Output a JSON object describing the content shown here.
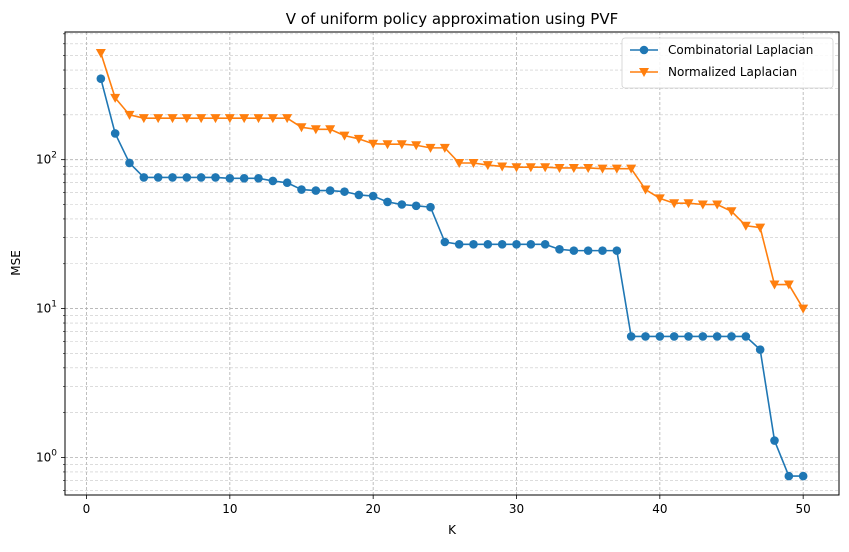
{
  "chart_data": {
    "type": "line",
    "title": "V of uniform policy approximation using PVF",
    "xlabel": "K",
    "ylabel": "MSE",
    "xlim": [
      -1.5,
      52.5
    ],
    "ylim": [
      0.56,
      720
    ],
    "y_scale": "log",
    "grid": true,
    "legend_position": "top-right",
    "x_ticks": [
      {
        "value": 0,
        "label": "0"
      },
      {
        "value": 10,
        "label": "10"
      },
      {
        "value": 20,
        "label": "20"
      },
      {
        "value": 30,
        "label": "30"
      },
      {
        "value": 40,
        "label": "40"
      },
      {
        "value": 50,
        "label": "50"
      }
    ],
    "y_major_ticks": [
      {
        "value": 1,
        "base": "10",
        "exp": "0"
      },
      {
        "value": 10,
        "base": "10",
        "exp": "1"
      },
      {
        "value": 100,
        "base": "10",
        "exp": "2"
      }
    ],
    "x": [
      1,
      2,
      3,
      4,
      5,
      6,
      7,
      8,
      9,
      10,
      11,
      12,
      13,
      14,
      15,
      16,
      17,
      18,
      19,
      20,
      21,
      22,
      23,
      24,
      25,
      26,
      27,
      28,
      29,
      30,
      31,
      32,
      33,
      34,
      35,
      36,
      37,
      38,
      39,
      40,
      41,
      42,
      43,
      44,
      45,
      46,
      47,
      48,
      49,
      50
    ],
    "series": [
      {
        "name": "Combinatorial Laplacian",
        "color": "#1f77b4",
        "marker": "circle",
        "values": [
          350,
          150,
          95,
          76,
          76,
          76,
          76,
          76,
          76,
          75,
          75,
          75,
          72,
          70,
          63,
          62,
          62,
          61,
          58,
          57,
          52,
          50,
          49,
          48,
          28,
          27,
          27,
          27,
          27,
          27,
          27,
          27,
          25,
          24.5,
          24.5,
          24.5,
          24.5,
          6.5,
          6.5,
          6.5,
          6.5,
          6.5,
          6.5,
          6.5,
          6.5,
          6.5,
          5.3,
          1.3,
          0.75,
          0.75
        ]
      },
      {
        "name": "Normalized Laplacian",
        "color": "#ff7f0e",
        "marker": "triangle-down",
        "values": [
          520,
          260,
          200,
          190,
          190,
          190,
          190,
          190,
          190,
          190,
          190,
          190,
          190,
          190,
          165,
          160,
          160,
          145,
          138,
          128,
          127,
          127,
          125,
          120,
          120,
          95,
          95,
          92,
          90,
          89,
          89,
          89,
          88,
          88,
          88,
          87,
          87,
          87,
          63,
          55,
          51,
          51,
          50,
          50,
          45,
          36,
          35,
          14.5,
          14.5,
          10
        ]
      }
    ]
  }
}
